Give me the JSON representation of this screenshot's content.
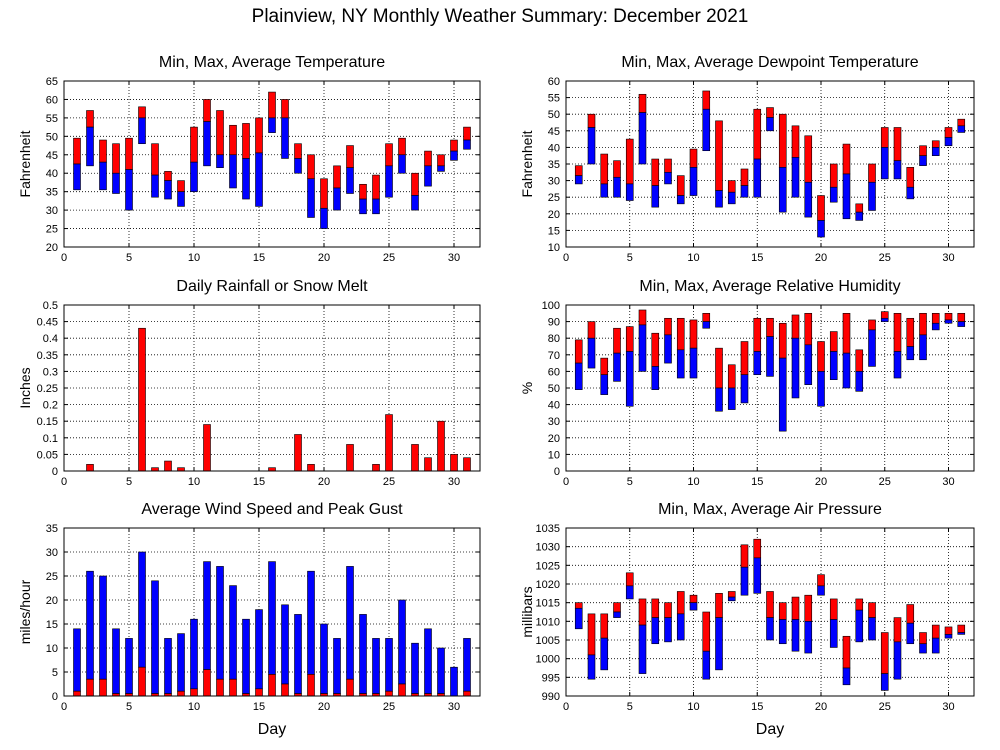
{
  "title": "Plainview, NY Monthly Weather Summary: December 2021",
  "colors": {
    "max_color": "#ff0000",
    "min_color": "#0000ff",
    "grid": "#000000"
  },
  "chart_data": [
    {
      "type": "bar",
      "id": "temperature",
      "title": "Min, Max, Average Temperature",
      "xlabel": "",
      "ylabel": "Fahrenheit",
      "xlim": [
        0,
        32
      ],
      "ylim": [
        20,
        65
      ],
      "xticks": [
        0,
        5,
        10,
        15,
        20,
        25,
        30
      ],
      "yticks": [
        20,
        25,
        30,
        35,
        40,
        45,
        50,
        55,
        60,
        65
      ],
      "grid": true,
      "bar_style": "min-avg-max",
      "days": [
        1,
        2,
        3,
        4,
        5,
        6,
        7,
        8,
        9,
        10,
        11,
        12,
        13,
        14,
        15,
        16,
        17,
        18,
        19,
        20,
        21,
        22,
        23,
        24,
        25,
        26,
        27,
        28,
        29,
        30,
        31
      ],
      "max": [
        49.5,
        57,
        49,
        48,
        49.5,
        58,
        48,
        40.5,
        38,
        52.5,
        60,
        57,
        53,
        53.5,
        55,
        62,
        60,
        48,
        45,
        38.5,
        42,
        47.5,
        37,
        39.5,
        48,
        49.5,
        40,
        46,
        45,
        49,
        52.5
      ],
      "avg": [
        42.5,
        52.5,
        43,
        40,
        41,
        55,
        39.5,
        38,
        35,
        43,
        54,
        45,
        45,
        44,
        45.5,
        55,
        55,
        44,
        38.5,
        30.5,
        36,
        41.5,
        33,
        33,
        42,
        45,
        34,
        42,
        42,
        46,
        49
      ],
      "min": [
        35.5,
        42,
        35.5,
        34.5,
        30,
        48,
        33.5,
        33,
        31,
        35,
        42,
        41.5,
        36,
        33,
        31,
        51,
        44,
        40,
        28,
        25,
        30,
        34.5,
        29,
        29,
        33.5,
        40,
        30,
        36.5,
        40.5,
        43.5,
        46.5
      ]
    },
    {
      "type": "bar",
      "id": "dewpoint",
      "title": "Min, Max, Average Dewpoint Temperature",
      "xlabel": "",
      "ylabel": "Fahrenheit",
      "xlim": [
        0,
        32
      ],
      "ylim": [
        10,
        60
      ],
      "xticks": [
        0,
        5,
        10,
        15,
        20,
        25,
        30
      ],
      "yticks": [
        10,
        15,
        20,
        25,
        30,
        35,
        40,
        45,
        50,
        55,
        60
      ],
      "grid": true,
      "bar_style": "min-avg-max",
      "days": [
        1,
        2,
        3,
        4,
        5,
        6,
        7,
        8,
        9,
        10,
        11,
        12,
        13,
        14,
        15,
        16,
        17,
        18,
        19,
        20,
        21,
        22,
        23,
        24,
        25,
        26,
        27,
        28,
        29,
        30,
        31
      ],
      "max": [
        34.5,
        50,
        38,
        36,
        42.5,
        56,
        36.5,
        36.5,
        31.5,
        39.5,
        57,
        48,
        30,
        33.5,
        51.5,
        52,
        50,
        46.5,
        43.5,
        25.5,
        35,
        41,
        23,
        35,
        46,
        46,
        34,
        40.5,
        42,
        46,
        48.5
      ],
      "avg": [
        31.5,
        46,
        29,
        31,
        29,
        50.5,
        28.5,
        32.5,
        25.5,
        34,
        51.5,
        27,
        26.5,
        28.5,
        36.5,
        49,
        34,
        37,
        29.5,
        18,
        28,
        32,
        20.5,
        29.5,
        40,
        36,
        28,
        37.5,
        40,
        43,
        46.5
      ],
      "min": [
        29,
        35,
        25,
        25,
        24,
        35,
        22,
        29,
        23,
        25.5,
        39,
        22,
        23,
        25,
        25,
        45,
        20.5,
        25,
        19,
        13,
        23.5,
        18.5,
        18,
        21,
        30.5,
        30.5,
        24.5,
        34.5,
        37.5,
        40.5,
        44.5
      ]
    },
    {
      "type": "bar",
      "id": "rainfall",
      "title": "Daily Rainfall or Snow Melt",
      "xlabel": "",
      "ylabel": "Inches",
      "xlim": [
        0,
        32
      ],
      "ylim": [
        0,
        0.5
      ],
      "xticks": [
        0,
        5,
        10,
        15,
        20,
        25,
        30
      ],
      "yticks": [
        0,
        0.05,
        0.1,
        0.15,
        0.2,
        0.25,
        0.3,
        0.35,
        0.4,
        0.45,
        0.5
      ],
      "grid": true,
      "bar_style": "single",
      "days": [
        1,
        2,
        3,
        4,
        5,
        6,
        7,
        8,
        9,
        10,
        11,
        12,
        13,
        14,
        15,
        16,
        17,
        18,
        19,
        20,
        21,
        22,
        23,
        24,
        25,
        26,
        27,
        28,
        29,
        30,
        31
      ],
      "values": [
        0,
        0.02,
        0,
        0,
        0,
        0.43,
        0.01,
        0.03,
        0.01,
        0,
        0.14,
        0,
        0,
        0,
        0,
        0.01,
        0,
        0.11,
        0.02,
        0,
        0,
        0.08,
        0,
        0.02,
        0.17,
        0,
        0.08,
        0.04,
        0.15,
        0.05,
        0.04
      ]
    },
    {
      "type": "bar",
      "id": "humidity",
      "title": "Min, Max, Average Relative Humidity",
      "xlabel": "",
      "ylabel": "%",
      "xlim": [
        0,
        32
      ],
      "ylim": [
        0,
        100
      ],
      "xticks": [
        0,
        5,
        10,
        15,
        20,
        25,
        30
      ],
      "yticks": [
        0,
        10,
        20,
        30,
        40,
        50,
        60,
        70,
        80,
        90,
        100
      ],
      "grid": true,
      "bar_style": "min-avg-max",
      "days": [
        1,
        2,
        3,
        4,
        5,
        6,
        7,
        8,
        9,
        10,
        11,
        12,
        13,
        14,
        15,
        16,
        17,
        18,
        19,
        20,
        21,
        22,
        23,
        24,
        25,
        26,
        27,
        28,
        29,
        30,
        31
      ],
      "max": [
        79,
        90,
        68,
        86,
        87,
        97,
        83,
        92,
        92,
        91,
        95,
        74,
        64,
        78,
        92,
        92,
        89,
        94,
        95,
        78,
        84,
        95,
        73,
        91,
        96,
        95,
        92,
        95,
        95,
        95,
        95
      ],
      "avg": [
        65,
        80,
        58,
        71,
        72,
        88,
        63,
        82,
        73,
        74,
        90,
        50,
        50,
        58,
        72,
        81,
        68,
        80,
        76,
        60,
        72,
        71,
        60,
        85,
        92,
        72,
        75,
        82,
        89,
        91,
        90
      ],
      "min": [
        49,
        62,
        46,
        54,
        39,
        60,
        49,
        65,
        56,
        56,
        86,
        36,
        37,
        41,
        58,
        57,
        24,
        44,
        52,
        39,
        55,
        50,
        48,
        63,
        90,
        56,
        67,
        67,
        85,
        89,
        87
      ]
    },
    {
      "type": "bar",
      "id": "wind",
      "title": "Average Wind Speed and Peak Gust",
      "xlabel": "Day",
      "ylabel": "miles/hour",
      "xlim": [
        0,
        32
      ],
      "ylim": [
        0,
        35
      ],
      "xticks": [
        0,
        5,
        10,
        15,
        20,
        25,
        30
      ],
      "yticks": [
        0,
        5,
        10,
        15,
        20,
        25,
        30,
        35
      ],
      "grid": true,
      "bar_style": "avg-gust",
      "days": [
        1,
        2,
        3,
        4,
        5,
        6,
        7,
        8,
        9,
        10,
        11,
        12,
        13,
        14,
        15,
        16,
        17,
        18,
        19,
        20,
        21,
        22,
        23,
        24,
        25,
        26,
        27,
        28,
        29,
        30,
        31
      ],
      "gust": [
        14,
        26,
        25,
        14,
        12,
        30,
        24,
        12,
        13,
        16,
        28,
        27,
        23,
        16,
        18,
        28,
        19,
        17,
        26,
        15,
        12,
        27,
        17,
        12,
        12,
        20,
        11,
        14,
        10,
        6,
        12
      ],
      "avg": [
        1,
        3.5,
        3.5,
        0.5,
        0.5,
        6,
        0.5,
        0.5,
        1,
        1.5,
        5.5,
        3.5,
        3.5,
        0.5,
        1.5,
        4.5,
        2.5,
        0.5,
        4.5,
        0.5,
        0.5,
        3.5,
        0.5,
        0.5,
        1,
        2.5,
        0.5,
        0.5,
        0.5,
        0,
        1
      ]
    },
    {
      "type": "bar",
      "id": "pressure",
      "title": "Min, Max, Average Air Pressure",
      "xlabel": "Day",
      "ylabel": "millibars",
      "xlim": [
        0,
        32
      ],
      "ylim": [
        990,
        1035
      ],
      "xticks": [
        0,
        5,
        10,
        15,
        20,
        25,
        30
      ],
      "yticks": [
        990,
        995,
        1000,
        1005,
        1010,
        1015,
        1020,
        1025,
        1030,
        1035
      ],
      "grid": true,
      "bar_style": "min-avg-max",
      "days": [
        1,
        2,
        3,
        4,
        5,
        6,
        7,
        8,
        9,
        10,
        11,
        12,
        13,
        14,
        15,
        16,
        17,
        18,
        19,
        20,
        21,
        22,
        23,
        24,
        25,
        26,
        27,
        28,
        29,
        30,
        31
      ],
      "max": [
        1015,
        1012,
        1012,
        1015,
        1023,
        1016,
        1016,
        1015,
        1018,
        1017,
        1012.5,
        1017.5,
        1018,
        1030.5,
        1032,
        1018,
        1015,
        1016.5,
        1017,
        1022.5,
        1016,
        1006,
        1016,
        1015,
        1007,
        1011,
        1014.5,
        1007,
        1009,
        1008.5,
        1009
      ],
      "avg": [
        1013.5,
        1001,
        1005.5,
        1012.5,
        1019.5,
        1009,
        1011,
        1011,
        1012,
        1015,
        1002,
        1011,
        1016.5,
        1024.5,
        1027,
        1011,
        1010.5,
        1010.5,
        1010,
        1019.5,
        1010.5,
        997.5,
        1013,
        1011,
        996,
        1004.5,
        1009.5,
        1004,
        1005.5,
        1006.5,
        1007
      ],
      "min": [
        1008,
        994.5,
        997,
        1011,
        1016,
        996,
        1004,
        1004.5,
        1005,
        1013,
        994.5,
        997,
        1015.5,
        1017,
        1017.5,
        1005,
        1004,
        1002,
        1001.5,
        1017,
        1003,
        993,
        1004.5,
        1005,
        991.5,
        994.5,
        1004,
        1001.5,
        1001.5,
        1005.5,
        1006.5
      ]
    }
  ]
}
